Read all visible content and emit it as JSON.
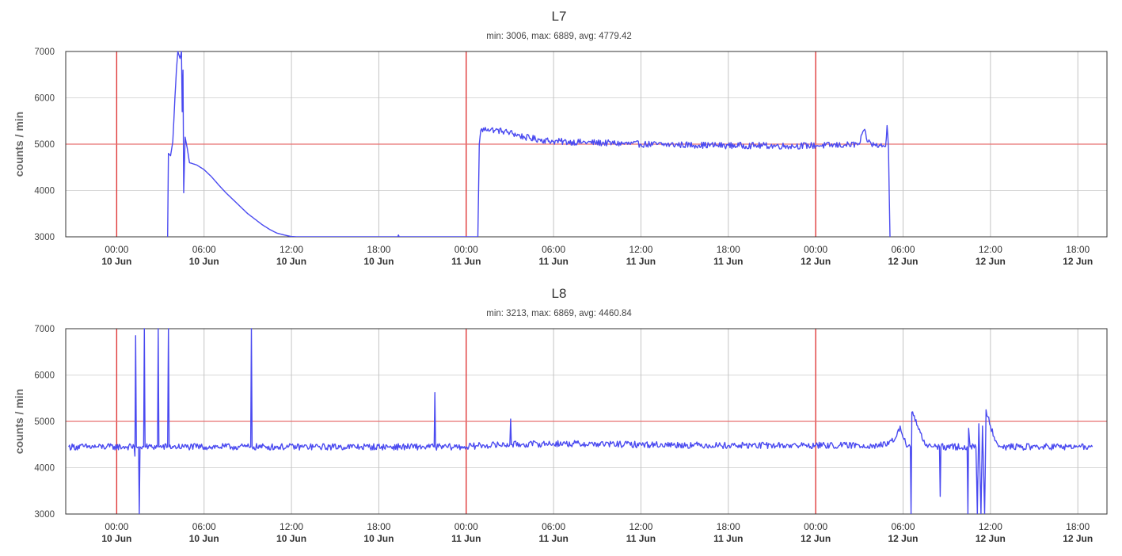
{
  "chart_data": [
    {
      "type": "line",
      "title": "L7",
      "subtitle": "min: 3006, max: 6889, avg: 4779.42",
      "ylabel": "counts / min",
      "xlabel": "",
      "ylim": [
        3000,
        7000
      ],
      "xlim": [
        -3.5,
        68
      ],
      "yticks": [
        3000,
        4000,
        5000,
        6000,
        7000
      ],
      "xticks": [
        {
          "x": 0,
          "time": "00:00",
          "date": "10 Jun"
        },
        {
          "x": 6,
          "time": "06:00",
          "date": "10 Jun"
        },
        {
          "x": 12,
          "time": "12:00",
          "date": "10 Jun"
        },
        {
          "x": 18,
          "time": "18:00",
          "date": "10 Jun"
        },
        {
          "x": 24,
          "time": "00:00",
          "date": "11 Jun"
        },
        {
          "x": 30,
          "time": "06:00",
          "date": "11 Jun"
        },
        {
          "x": 36,
          "time": "12:00",
          "date": "11 Jun"
        },
        {
          "x": 42,
          "time": "18:00",
          "date": "11 Jun"
        },
        {
          "x": 48,
          "time": "00:00",
          "date": "12 Jun"
        },
        {
          "x": 54,
          "time": "06:00",
          "date": "12 Jun"
        },
        {
          "x": 60,
          "time": "12:00",
          "date": "12 Jun"
        },
        {
          "x": 66,
          "time": "18:00",
          "date": "12 Jun"
        }
      ],
      "day_lines": [
        0,
        24,
        48
      ],
      "reference_line": 5000,
      "grid": true,
      "series": [
        {
          "color": "#4a4af0",
          "points": [
            [
              3.5,
              3000
            ],
            [
              3.55,
              4800
            ],
            [
              3.7,
              4750
            ],
            [
              3.85,
              5050
            ],
            [
              4.0,
              6000
            ],
            [
              4.1,
              6600
            ],
            [
              4.2,
              7000
            ],
            [
              4.35,
              6850
            ],
            [
              4.45,
              7000
            ],
            [
              4.5,
              5700
            ],
            [
              4.55,
              6600
            ],
            [
              4.6,
              3950
            ],
            [
              4.7,
              5150
            ],
            [
              4.85,
              4900
            ],
            [
              5.0,
              4600
            ],
            [
              5.5,
              4550
            ],
            [
              6.0,
              4450
            ],
            [
              6.5,
              4300
            ],
            [
              7.0,
              4120
            ],
            [
              7.5,
              3950
            ],
            [
              8.0,
              3800
            ],
            [
              8.5,
              3650
            ],
            [
              9.0,
              3500
            ],
            [
              9.5,
              3380
            ],
            [
              10.0,
              3260
            ],
            [
              10.5,
              3160
            ],
            [
              11.0,
              3080
            ],
            [
              11.5,
              3040
            ],
            [
              12.0,
              3006
            ],
            [
              12.5,
              3000
            ],
            [
              19.3,
              3000
            ],
            [
              19.35,
              3040
            ],
            [
              19.4,
              3000
            ],
            [
              24.8,
              3000
            ],
            [
              24.9,
              5000
            ],
            [
              25.0,
              5300
            ],
            [
              25.5,
              5330
            ],
            [
              26.0,
              5300
            ],
            [
              26.5,
              5280
            ],
            [
              27.0,
              5250
            ],
            [
              28.0,
              5150
            ],
            [
              29.0,
              5100
            ],
            [
              30.0,
              5060
            ],
            [
              32.0,
              5040
            ],
            [
              34.0,
              5020
            ],
            [
              36.0,
              5000
            ],
            [
              38.0,
              4990
            ],
            [
              40.0,
              4980
            ],
            [
              42.0,
              4970
            ],
            [
              44.0,
              4970
            ],
            [
              46.0,
              4960
            ],
            [
              48.0,
              4970
            ],
            [
              50.0,
              4980
            ],
            [
              51.0,
              5000
            ],
            [
              51.3,
              5300
            ],
            [
              51.6,
              5050
            ],
            [
              52.0,
              4980
            ],
            [
              52.8,
              4950
            ],
            [
              52.9,
              5400
            ],
            [
              53.0,
              4900
            ],
            [
              53.1,
              3000
            ]
          ],
          "noise": [
            {
              "from": 25.0,
              "to": 53.0,
              "amplitude": 70
            }
          ]
        }
      ]
    },
    {
      "type": "line",
      "title": "L8",
      "subtitle": "min: 3213, max: 6869, avg: 4460.84",
      "ylabel": "counts / min",
      "xlabel": "",
      "ylim": [
        3000,
        7000
      ],
      "xlim": [
        -3.5,
        68
      ],
      "yticks": [
        3000,
        4000,
        5000,
        6000,
        7000
      ],
      "xticks": [
        {
          "x": 0,
          "time": "00:00",
          "date": "10 Jun"
        },
        {
          "x": 6,
          "time": "06:00",
          "date": "10 Jun"
        },
        {
          "x": 12,
          "time": "12:00",
          "date": "10 Jun"
        },
        {
          "x": 18,
          "time": "18:00",
          "date": "10 Jun"
        },
        {
          "x": 24,
          "time": "00:00",
          "date": "11 Jun"
        },
        {
          "x": 30,
          "time": "06:00",
          "date": "11 Jun"
        },
        {
          "x": 36,
          "time": "12:00",
          "date": "11 Jun"
        },
        {
          "x": 42,
          "time": "18:00",
          "date": "11 Jun"
        },
        {
          "x": 48,
          "time": "00:00",
          "date": "12 Jun"
        },
        {
          "x": 54,
          "time": "06:00",
          "date": "12 Jun"
        },
        {
          "x": 60,
          "time": "12:00",
          "date": "12 Jun"
        },
        {
          "x": 66,
          "time": "18:00",
          "date": "12 Jun"
        }
      ],
      "day_lines": [
        0,
        24,
        48
      ],
      "reference_line": 5000,
      "grid": true,
      "series": [
        {
          "color": "#4a4af0",
          "points": [
            [
              -3.3,
              4450
            ],
            [
              1.2,
              4450
            ],
            [
              1.25,
              4250
            ],
            [
              1.3,
              6850
            ],
            [
              1.35,
              4450
            ],
            [
              1.5,
              4450
            ],
            [
              1.55,
              3000
            ],
            [
              1.6,
              4450
            ],
            [
              1.85,
              4450
            ],
            [
              1.9,
              7000
            ],
            [
              1.95,
              4450
            ],
            [
              2.8,
              4450
            ],
            [
              2.85,
              7000
            ],
            [
              2.9,
              4450
            ],
            [
              3.5,
              4450
            ],
            [
              3.55,
              7000
            ],
            [
              3.6,
              4450
            ],
            [
              9.2,
              4450
            ],
            [
              9.25,
              7000
            ],
            [
              9.3,
              4450
            ],
            [
              21.8,
              4450
            ],
            [
              21.85,
              5620
            ],
            [
              21.9,
              4450
            ],
            [
              24.0,
              4450
            ],
            [
              25.0,
              4480
            ],
            [
              27.0,
              4500
            ],
            [
              27.05,
              5050
            ],
            [
              27.1,
              4500
            ],
            [
              30.0,
              4520
            ],
            [
              36.0,
              4500
            ],
            [
              42.0,
              4480
            ],
            [
              48.0,
              4480
            ],
            [
              52.0,
              4480
            ],
            [
              53.0,
              4500
            ],
            [
              53.5,
              4650
            ],
            [
              53.8,
              4900
            ],
            [
              54.0,
              4650
            ],
            [
              54.3,
              4450
            ],
            [
              54.5,
              4450
            ],
            [
              54.55,
              3000
            ],
            [
              54.6,
              5200
            ],
            [
              55.0,
              4900
            ],
            [
              55.5,
              4500
            ],
            [
              56.0,
              4450
            ],
            [
              56.5,
              4450
            ],
            [
              56.55,
              3380
            ],
            [
              56.6,
              4450
            ],
            [
              58.4,
              4450
            ],
            [
              58.45,
              3000
            ],
            [
              58.5,
              4850
            ],
            [
              58.6,
              4450
            ],
            [
              59.0,
              4450
            ],
            [
              59.1,
              3000
            ],
            [
              59.2,
              4950
            ],
            [
              59.35,
              3000
            ],
            [
              59.45,
              4900
            ],
            [
              59.6,
              3000
            ],
            [
              59.7,
              5250
            ],
            [
              60.0,
              4900
            ],
            [
              60.5,
              4500
            ],
            [
              61.0,
              4450
            ],
            [
              64.0,
              4450
            ],
            [
              66.0,
              4450
            ],
            [
              67.0,
              4450
            ]
          ],
          "noise": [
            {
              "from": -3.3,
              "to": 67.0,
              "amplitude": 70
            }
          ]
        }
      ]
    }
  ]
}
